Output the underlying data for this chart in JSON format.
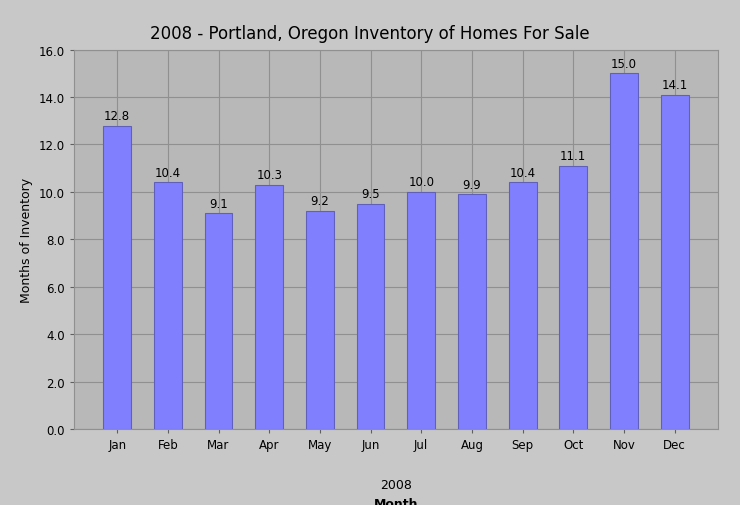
{
  "title_bold": "2008",
  "title_rest": " - Portland, Oregon Inventory of Homes For Sale",
  "xlabel_line1": "2008",
  "xlabel_line2": "Month",
  "ylabel": "Months of Inventory",
  "months": [
    "Jan",
    "Feb",
    "Mar",
    "Apr",
    "May",
    "Jun",
    "Jul",
    "Aug",
    "Sep",
    "Oct",
    "Nov",
    "Dec"
  ],
  "values": [
    12.8,
    10.4,
    9.1,
    10.3,
    9.2,
    9.5,
    10.0,
    9.9,
    10.4,
    11.1,
    15.0,
    14.1
  ],
  "bar_color": "#8080ff",
  "bar_edge_color": "#6060bb",
  "figure_bg_color": "#c8c8c8",
  "plot_bg_color": "#b8b8b8",
  "ylim": [
    0.0,
    16.0
  ],
  "ytick_labels": [
    "0.0",
    "2.0",
    "4.0",
    "6.0",
    "8.0",
    "10.0",
    "12.0",
    "14.0",
    "16.0"
  ],
  "ytick_values": [
    0.0,
    2.0,
    4.0,
    6.0,
    8.0,
    10.0,
    12.0,
    14.0,
    16.0
  ],
  "grid_color": "#909090",
  "label_fontsize": 8.5,
  "title_fontsize": 12,
  "axis_label_fontsize": 9,
  "tick_fontsize": 8.5,
  "bar_width": 0.55
}
